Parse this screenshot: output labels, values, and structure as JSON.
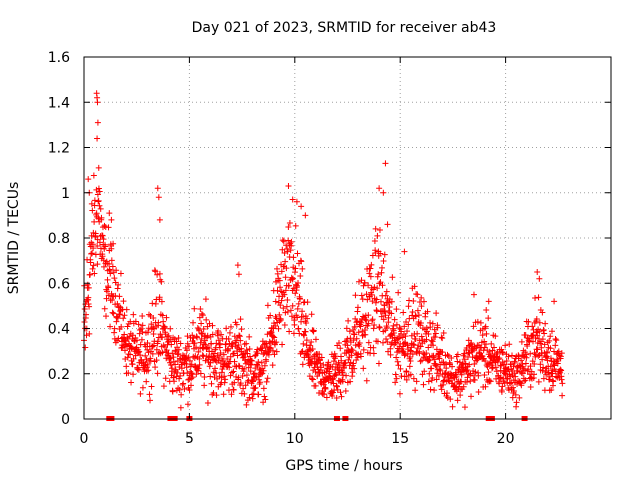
{
  "chart_data": {
    "type": "scatter",
    "title": "Day 021 of 2023, SRMTID for receiver ab43",
    "xlabel": "GPS time / hours",
    "ylabel": "SRMTID / TECUs",
    "xlim": [
      0,
      25
    ],
    "ylim": [
      0,
      1.6
    ],
    "xticks": [
      0,
      5,
      10,
      15,
      20
    ],
    "yticks": [
      0,
      0.2,
      0.4,
      0.6,
      0.8,
      1,
      1.2,
      1.4,
      1.6
    ],
    "grid": true,
    "marker": "+",
    "color": "#ff0000",
    "series": [
      {
        "name": "SRMTID",
        "envelope": [
          [
            0.0,
            0.32,
            0.15
          ],
          [
            0.3,
            0.7,
            0.14
          ],
          [
            0.5,
            0.82,
            0.12
          ],
          [
            0.7,
            0.95,
            0.13
          ],
          [
            0.9,
            0.7,
            0.1
          ],
          [
            1.2,
            0.62,
            0.1
          ],
          [
            1.5,
            0.55,
            0.09
          ],
          [
            1.8,
            0.4,
            0.08
          ],
          [
            2.2,
            0.3,
            0.07
          ],
          [
            2.6,
            0.28,
            0.07
          ],
          [
            3.0,
            0.3,
            0.08
          ],
          [
            3.5,
            0.45,
            0.12
          ],
          [
            3.8,
            0.35,
            0.09
          ],
          [
            4.2,
            0.25,
            0.07
          ],
          [
            4.6,
            0.23,
            0.07
          ],
          [
            5.0,
            0.26,
            0.08
          ],
          [
            5.5,
            0.32,
            0.09
          ],
          [
            6.0,
            0.3,
            0.09
          ],
          [
            6.5,
            0.25,
            0.07
          ],
          [
            7.0,
            0.28,
            0.08
          ],
          [
            7.5,
            0.26,
            0.08
          ],
          [
            8.0,
            0.2,
            0.06
          ],
          [
            8.5,
            0.22,
            0.06
          ],
          [
            9.0,
            0.4,
            0.1
          ],
          [
            9.5,
            0.6,
            0.13
          ],
          [
            10.0,
            0.58,
            0.14
          ],
          [
            10.5,
            0.35,
            0.1
          ],
          [
            11.0,
            0.22,
            0.06
          ],
          [
            11.5,
            0.18,
            0.05
          ],
          [
            12.0,
            0.2,
            0.06
          ],
          [
            12.5,
            0.28,
            0.08
          ],
          [
            13.0,
            0.38,
            0.1
          ],
          [
            13.5,
            0.48,
            0.12
          ],
          [
            14.0,
            0.58,
            0.14
          ],
          [
            14.5,
            0.4,
            0.1
          ],
          [
            15.0,
            0.32,
            0.09
          ],
          [
            15.5,
            0.38,
            0.1
          ],
          [
            16.0,
            0.36,
            0.09
          ],
          [
            16.5,
            0.3,
            0.08
          ],
          [
            17.0,
            0.25,
            0.07
          ],
          [
            17.5,
            0.18,
            0.05
          ],
          [
            18.0,
            0.2,
            0.06
          ],
          [
            18.5,
            0.28,
            0.08
          ],
          [
            19.0,
            0.3,
            0.08
          ],
          [
            19.5,
            0.24,
            0.06
          ],
          [
            20.0,
            0.22,
            0.06
          ],
          [
            20.5,
            0.18,
            0.05
          ],
          [
            21.0,
            0.28,
            0.08
          ],
          [
            21.5,
            0.35,
            0.09
          ],
          [
            22.0,
            0.28,
            0.08
          ],
          [
            22.5,
            0.24,
            0.06
          ],
          [
            22.7,
            0.22,
            0.06
          ]
        ],
        "spikes": [
          [
            0.6,
            1.44
          ],
          [
            0.62,
            1.42
          ],
          [
            0.64,
            1.4
          ],
          [
            0.66,
            1.31
          ],
          [
            0.62,
            1.24
          ],
          [
            0.7,
            1.11
          ],
          [
            0.2,
            1.06
          ],
          [
            0.25,
            1.0
          ],
          [
            1.2,
            0.91
          ],
          [
            1.3,
            0.88
          ],
          [
            3.5,
            1.02
          ],
          [
            3.55,
            0.98
          ],
          [
            3.6,
            0.88
          ],
          [
            7.3,
            0.68
          ],
          [
            7.35,
            0.64
          ],
          [
            9.7,
            1.03
          ],
          [
            9.9,
            0.97
          ],
          [
            10.1,
            0.96
          ],
          [
            10.3,
            0.94
          ],
          [
            10.5,
            0.9
          ],
          [
            14.0,
            1.02
          ],
          [
            14.2,
            1.0
          ],
          [
            14.3,
            1.13
          ],
          [
            14.4,
            0.86
          ],
          [
            15.2,
            0.74
          ],
          [
            18.5,
            0.55
          ],
          [
            19.2,
            0.52
          ],
          [
            21.5,
            0.65
          ],
          [
            21.6,
            0.62
          ],
          [
            22.3,
            0.52
          ]
        ],
        "zero_markers": [
          1.2,
          1.3,
          4.1,
          4.2,
          4.3,
          5.0,
          12.0,
          12.4,
          19.2,
          19.35,
          20.9
        ]
      }
    ]
  }
}
